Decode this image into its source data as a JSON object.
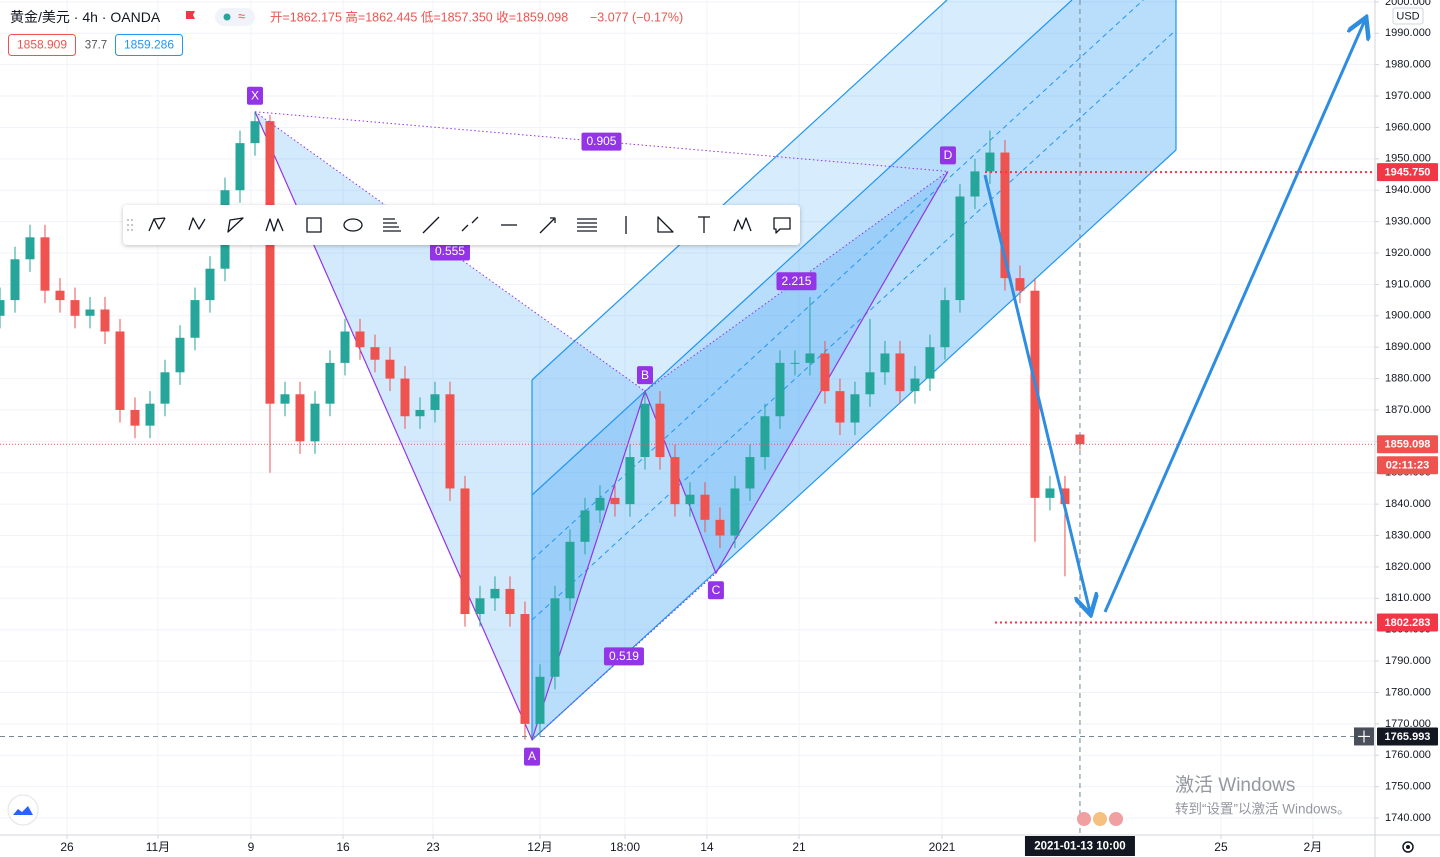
{
  "header": {
    "symbol": "黄金/美元",
    "interval": "4h",
    "exchange": "OANDA",
    "ohlc": "开=1862.175 高=1862.445 低=1857.350 收=1859.098",
    "change": "−3.077 (−0.17%)",
    "bid": "1858.909",
    "spread": "37.7",
    "ask": "1859.286"
  },
  "chart_data": {
    "type": "candlestick",
    "x": [
      0,
      1,
      2,
      3,
      4,
      5,
      6,
      7,
      8,
      9,
      10,
      11,
      12,
      13,
      14,
      15,
      16,
      17,
      18,
      19,
      20,
      21,
      22,
      23,
      24,
      25,
      26,
      27,
      28,
      29,
      30,
      31,
      32,
      33,
      34,
      35,
      36,
      37,
      38,
      39,
      40,
      41,
      42,
      43,
      44,
      45,
      46,
      47,
      48,
      49,
      50,
      51,
      52,
      53,
      54,
      55,
      56,
      57,
      58,
      59,
      60,
      61,
      62,
      63,
      64,
      65,
      66,
      67,
      68,
      69,
      70,
      71,
      72
    ],
    "open": [
      1900,
      1905,
      1918,
      1925,
      1908,
      1905,
      1900,
      1902,
      1895,
      1870,
      1865,
      1872,
      1882,
      1893,
      1905,
      1915,
      1940,
      1955,
      1962,
      1872,
      1875,
      1860,
      1872,
      1885,
      1895,
      1890,
      1886,
      1880,
      1868,
      1870,
      1875,
      1845,
      1805,
      1810,
      1813,
      1805,
      1770,
      1785,
      1810,
      1828,
      1838,
      1842,
      1840,
      1855,
      1872,
      1855,
      1840,
      1843,
      1835,
      1830,
      1845,
      1855,
      1868,
      1885,
      1885,
      1888,
      1876,
      1866,
      1875,
      1882,
      1888,
      1876,
      1880,
      1890,
      1905,
      1938,
      1946,
      1952,
      1912,
      1908,
      1842,
      1845,
      1862.175
    ],
    "high": [
      1909,
      1922,
      1929,
      1929,
      1912,
      1909,
      1906,
      1906,
      1899,
      1874,
      1876,
      1886,
      1897,
      1909,
      1919,
      1944,
      1959,
      1965,
      1964,
      1879,
      1879,
      1876,
      1889,
      1899,
      1899,
      1894,
      1890,
      1884,
      1874,
      1879,
      1879,
      1849,
      1814,
      1817,
      1817,
      1809,
      1789,
      1814,
      1832,
      1842,
      1846,
      1846,
      1859,
      1876,
      1876,
      1859,
      1847,
      1847,
      1839,
      1849,
      1859,
      1872,
      1889,
      1889,
      1906,
      1892,
      1880,
      1879,
      1899,
      1892,
      1892,
      1884,
      1894,
      1909,
      1942,
      1950,
      1959,
      1956,
      1916,
      1912,
      1849,
      1849,
      1862.445
    ],
    "low": [
      1896,
      1901,
      1914,
      1904,
      1901,
      1896,
      1896,
      1891,
      1866,
      1861,
      1861,
      1868,
      1878,
      1889,
      1901,
      1911,
      1936,
      1951,
      1850,
      1868,
      1856,
      1856,
      1868,
      1881,
      1886,
      1882,
      1876,
      1864,
      1864,
      1866,
      1841,
      1801,
      1801,
      1806,
      1801,
      1765,
      1766,
      1781,
      1806,
      1824,
      1834,
      1836,
      1836,
      1851,
      1851,
      1836,
      1836,
      1831,
      1826,
      1826,
      1841,
      1851,
      1864,
      1881,
      1881,
      1872,
      1862,
      1862,
      1871,
      1878,
      1872,
      1872,
      1876,
      1886,
      1901,
      1934,
      1942,
      1908,
      1904,
      1828,
      1838,
      1817,
      1857.35
    ],
    "close": [
      1905,
      1918,
      1925,
      1908,
      1905,
      1900,
      1902,
      1895,
      1870,
      1865,
      1872,
      1882,
      1893,
      1905,
      1915,
      1940,
      1955,
      1962,
      1872,
      1875,
      1860,
      1872,
      1885,
      1895,
      1890,
      1886,
      1880,
      1868,
      1870,
      1875,
      1845,
      1805,
      1810,
      1813,
      1805,
      1770,
      1785,
      1810,
      1828,
      1838,
      1842,
      1840,
      1855,
      1872,
      1855,
      1840,
      1843,
      1835,
      1830,
      1845,
      1855,
      1868,
      1885,
      1885,
      1888,
      1876,
      1866,
      1875,
      1882,
      1888,
      1876,
      1880,
      1890,
      1905,
      1938,
      1946,
      1952,
      1912,
      1908,
      1842,
      1845,
      1840,
      1859.098
    ],
    "up_color": "#26a69a",
    "down_color": "#ef5350",
    "xlim": [
      0,
      91.67
    ],
    "xticks": [
      {
        "value": 4.47,
        "label": "26"
      },
      {
        "value": 10.53,
        "label": "11月"
      },
      {
        "value": 16.73,
        "label": "9"
      },
      {
        "value": 22.87,
        "label": "16"
      },
      {
        "value": 28.87,
        "label": "23"
      },
      {
        "value": 36,
        "label": "12月"
      },
      {
        "value": 41.67,
        "label": "18:00"
      },
      {
        "value": 47.13,
        "label": "14"
      },
      {
        "value": 53.27,
        "label": "21"
      },
      {
        "value": 62.8,
        "label": "2021"
      },
      {
        "value": 81.4,
        "label": "25"
      },
      {
        "value": 87.53,
        "label": "2月"
      }
    ],
    "ylim": [
      1734.6,
      2000.6
    ],
    "yticks": [
      {
        "value": 1740,
        "label": "1740.000"
      },
      {
        "value": 1750,
        "label": "1750.000"
      },
      {
        "value": 1760,
        "label": "1760.000"
      },
      {
        "value": 1770,
        "label": "1770.000"
      },
      {
        "value": 1780,
        "label": "1780.000"
      },
      {
        "value": 1790,
        "label": "1790.000"
      },
      {
        "value": 1800,
        "label": "1800.000"
      },
      {
        "value": 1810,
        "label": "1810.000"
      },
      {
        "value": 1820,
        "label": "1820.000"
      },
      {
        "value": 1830,
        "label": "1830.000"
      },
      {
        "value": 1840,
        "label": "1840.000"
      },
      {
        "value": 1850,
        "label": "1850.000"
      },
      {
        "value": 1860,
        "label": "1860.000"
      },
      {
        "value": 1870,
        "label": "1870.000"
      },
      {
        "value": 1880,
        "label": "1880.000"
      },
      {
        "value": 1890,
        "label": "1890.000"
      },
      {
        "value": 1900,
        "label": "1900.000"
      },
      {
        "value": 1910,
        "label": "1910.000"
      },
      {
        "value": 1920,
        "label": "1920.000"
      },
      {
        "value": 1930,
        "label": "1930.000"
      },
      {
        "value": 1940,
        "label": "1940.000"
      },
      {
        "value": 1950,
        "label": "1950.000"
      },
      {
        "value": 1960,
        "label": "1960.000"
      },
      {
        "value": 1970,
        "label": "1970.000"
      },
      {
        "value": 1980,
        "label": "1980.000"
      },
      {
        "value": 1990,
        "label": "1990.000"
      },
      {
        "value": 2000,
        "label": "2000.000"
      }
    ],
    "grid": true,
    "currency": "USD",
    "price_lines": [
      {
        "value": 1945.75,
        "label": "1945.750",
        "color": "#f23645"
      },
      {
        "value": 1802.283,
        "label": "1802.283",
        "color": "#f23645"
      }
    ],
    "last_price": {
      "value": 1859.098,
      "label": "1859.098",
      "countdown": "02:11:23",
      "color": "#ef5350"
    },
    "crosshair": {
      "y": {
        "value": 1765.993,
        "label": "1765.993"
      },
      "x": {
        "value": 72,
        "label": "2021-01-13 10:00"
      }
    },
    "pattern": {
      "color": "#9334e6",
      "points": [
        {
          "label": "X",
          "x": 17,
          "y": 1965
        },
        {
          "label": "A",
          "x": 35.47,
          "y": 1765
        },
        {
          "label": "B",
          "x": 43,
          "y": 1876
        },
        {
          "label": "C",
          "x": 47.73,
          "y": 1818
        },
        {
          "label": "D",
          "x": 63.2,
          "y": 1946
        }
      ],
      "ratios": {
        "XB": 0.555,
        "XD": 0.905,
        "AC": 0.519,
        "BD": 2.215
      }
    }
  },
  "watermark": {
    "title": "激活 Windows",
    "subtitle": "转到“设置”以激活 Windows。"
  }
}
